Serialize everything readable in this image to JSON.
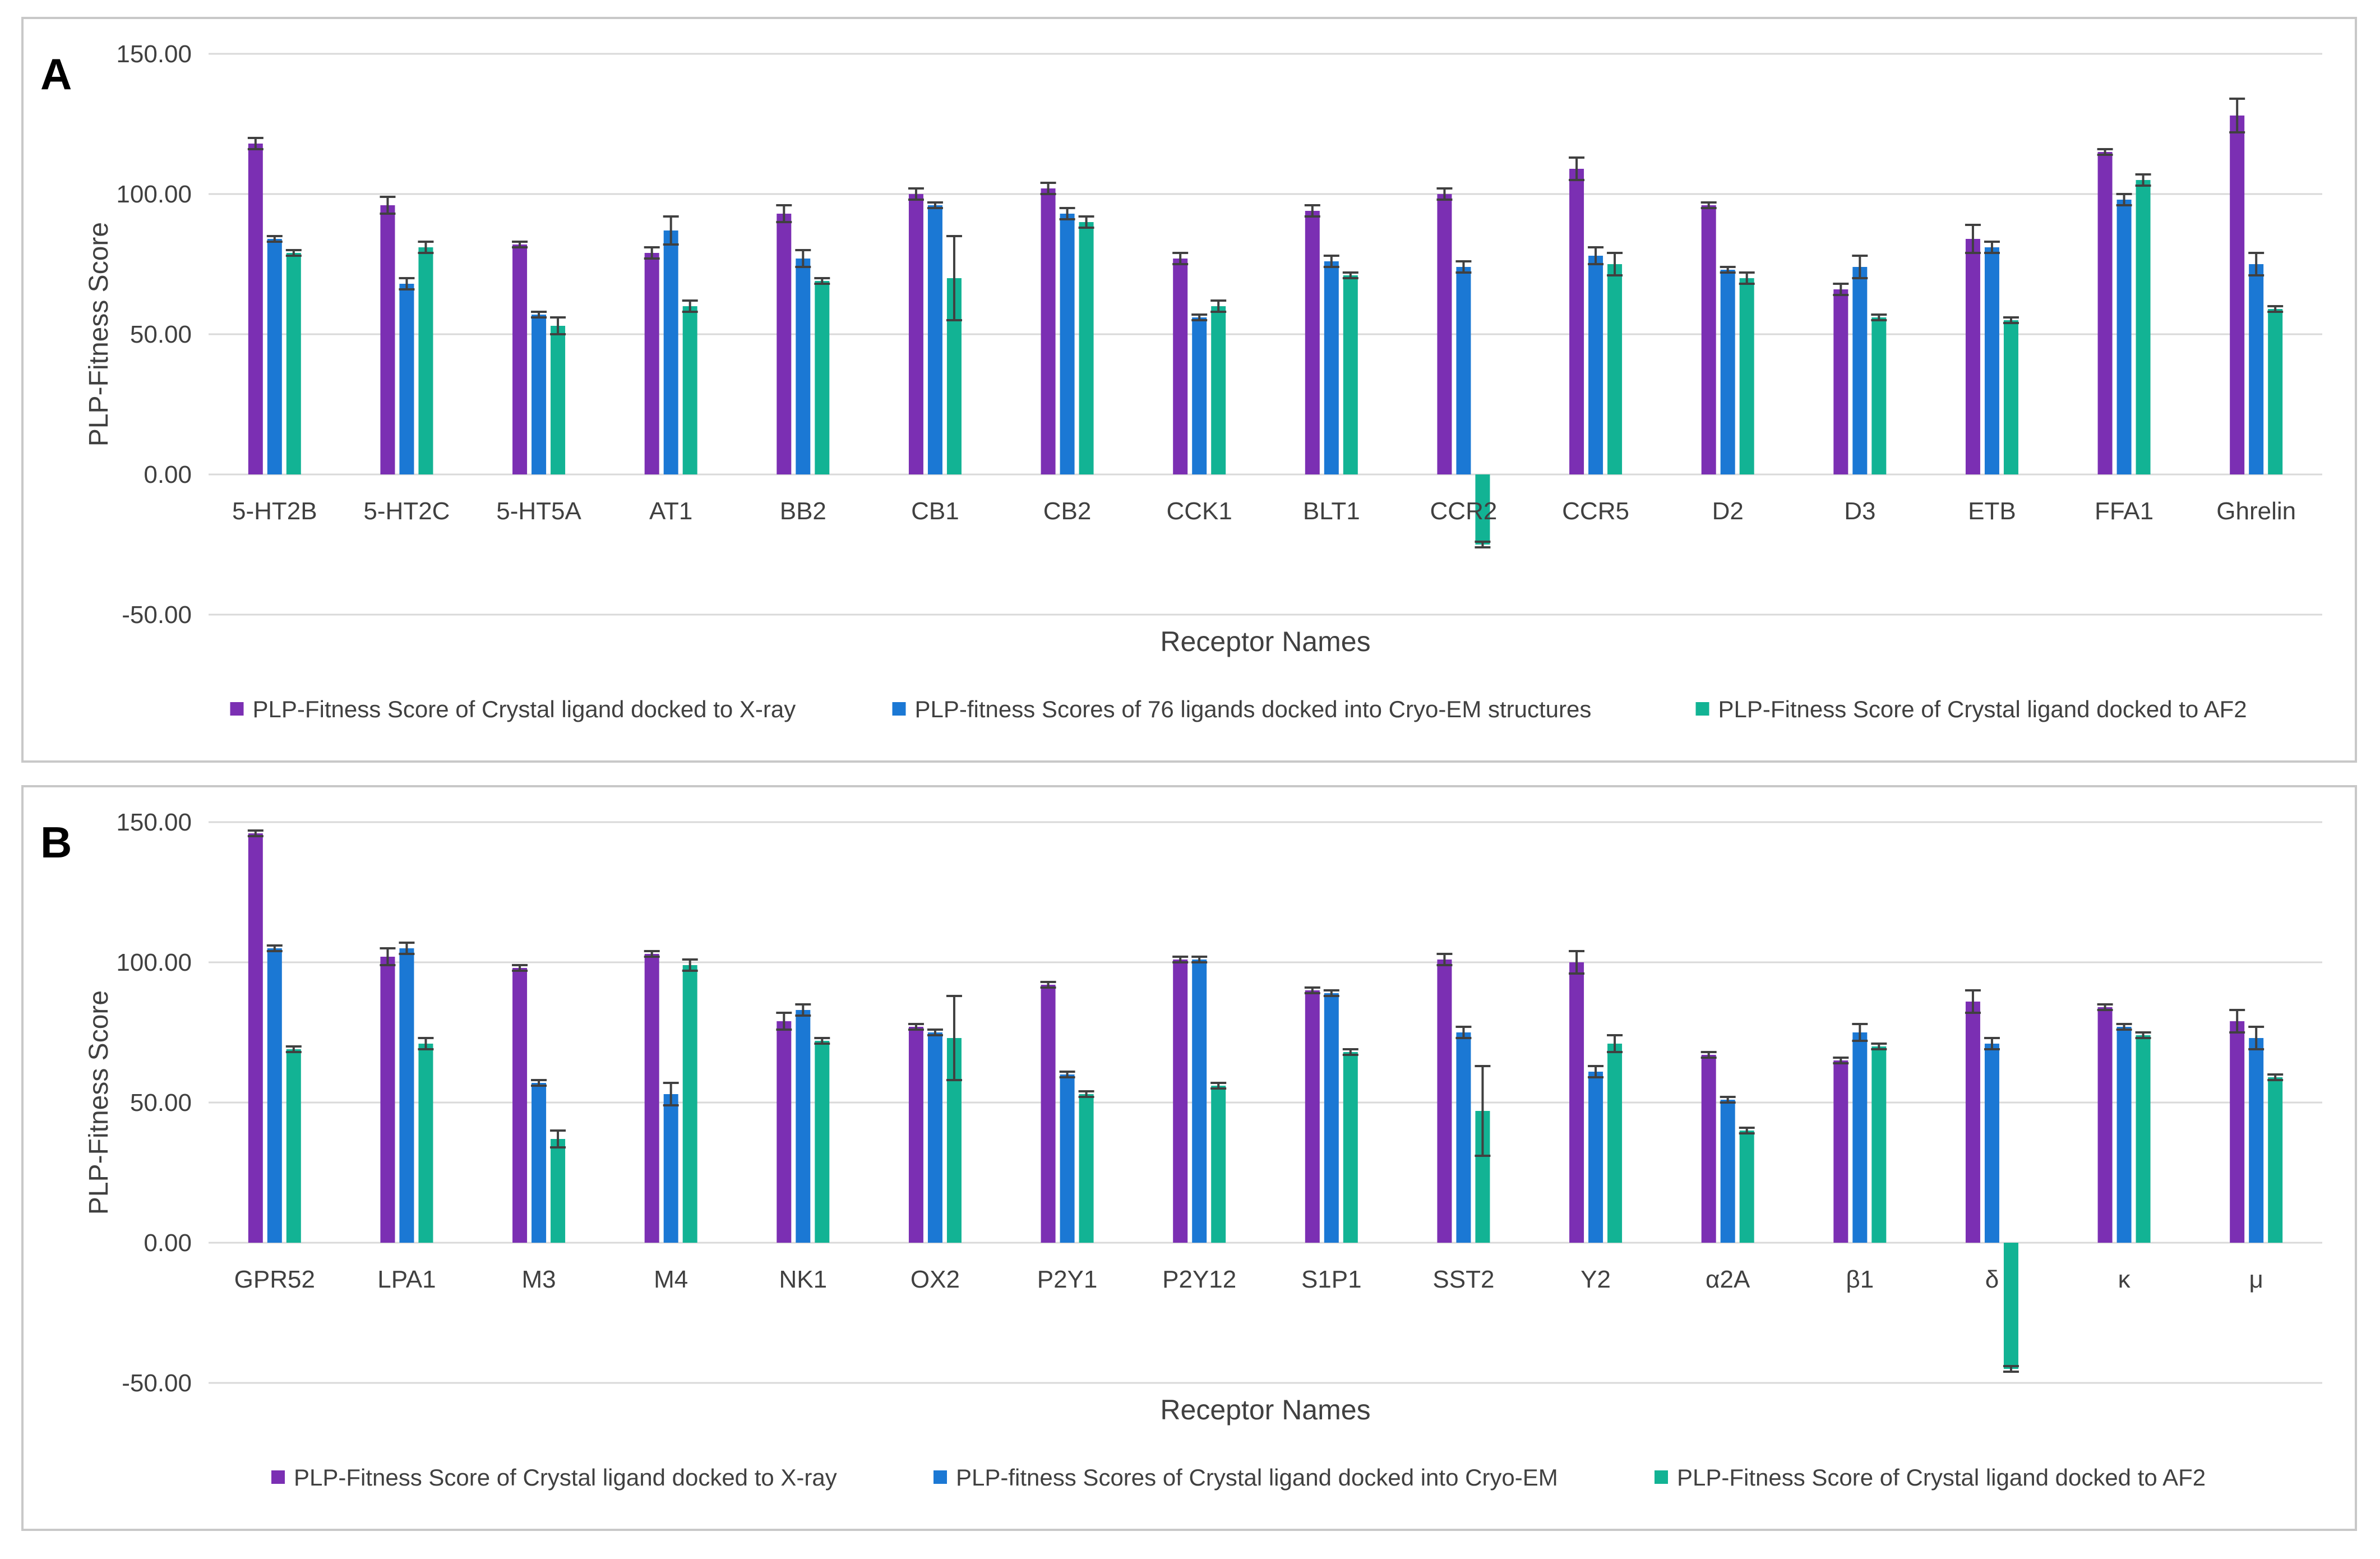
{
  "colors": {
    "xray": "#7B2FB3",
    "cryo": "#1B78D4",
    "af2": "#12B394",
    "grid": "#d9d9d9",
    "error": "#404040"
  },
  "chart_data": [
    {
      "type": "bar",
      "panel_label": "A",
      "title": "",
      "xlabel": "Receptor Names",
      "ylabel": "PLP-Fitness Score",
      "ylim": [
        -50,
        150
      ],
      "yticks": [
        "150.00",
        "100.00",
        "50.00",
        "0.00",
        "-50.00"
      ],
      "ytick_values": [
        150,
        100,
        50,
        0,
        -50
      ],
      "legend_position": "bottom",
      "categories": [
        "5-HT2B",
        "5-HT2C",
        "5-HT5A",
        "AT1",
        "BB2",
        "CB1",
        "CB2",
        "CCK1",
        "BLT1",
        "CCR2",
        "CCR5",
        "D2",
        "D3",
        "ETB",
        "FFA1",
        "Ghrelin"
      ],
      "series": [
        {
          "name": "PLP-Fitness Score of Crystal ligand docked to X-ray",
          "color_key": "xray",
          "values": [
            118,
            96,
            82,
            79,
            93,
            100,
            102,
            77,
            94,
            100,
            109,
            96,
            66,
            84,
            115,
            128
          ],
          "errors": [
            2,
            3,
            1,
            2,
            3,
            2,
            2,
            2,
            2,
            2,
            4,
            1,
            2,
            5,
            1,
            6
          ]
        },
        {
          "name": "PLP-fitness Scores of 76 ligands docked into Cryo-EM structures",
          "color_key": "cryo",
          "values": [
            84,
            68,
            57,
            87,
            77,
            96,
            93,
            56,
            76,
            74,
            78,
            73,
            74,
            81,
            98,
            75
          ],
          "errors": [
            1,
            2,
            1,
            5,
            3,
            1,
            2,
            1,
            2,
            2,
            3,
            1,
            4,
            2,
            2,
            4
          ]
        },
        {
          "name": "PLP-Fitness Score of Crystal ligand docked to AF2",
          "color_key": "af2",
          "values": [
            79,
            81,
            53,
            60,
            69,
            70,
            90,
            60,
            71,
            -25,
            75,
            70,
            56,
            55,
            105,
            59
          ],
          "errors": [
            1,
            2,
            3,
            2,
            1,
            15,
            2,
            2,
            1,
            1,
            4,
            2,
            1,
            1,
            2,
            1
          ]
        }
      ]
    },
    {
      "type": "bar",
      "panel_label": "B",
      "title": "",
      "xlabel": "Receptor Names",
      "ylabel": "PLP-Fitness Score",
      "ylim": [
        -50,
        150
      ],
      "yticks": [
        "150.00",
        "100.00",
        "50.00",
        "0.00",
        "-50.00"
      ],
      "ytick_values": [
        150,
        100,
        50,
        0,
        -50
      ],
      "legend_position": "bottom",
      "categories": [
        "GPR52",
        "LPA1",
        "M3",
        "M4",
        "NK1",
        "OX2",
        "P2Y1",
        "P2Y12",
        "S1P1",
        "SST2",
        "Y2",
        "α2A",
        "β1",
        "δ",
        "κ",
        "μ"
      ],
      "series": [
        {
          "name": "PLP-Fitness Score of Crystal ligand docked to X-ray",
          "color_key": "xray",
          "values": [
            146,
            102,
            98,
            103,
            79,
            77,
            92,
            101,
            90,
            101,
            100,
            67,
            65,
            86,
            84,
            79
          ],
          "errors": [
            1,
            3,
            1,
            1,
            3,
            1,
            1,
            1,
            1,
            2,
            4,
            1,
            1,
            4,
            1,
            4
          ]
        },
        {
          "name": "PLP-fitness Scores of Crystal ligand docked into Cryo-EM",
          "color_key": "cryo",
          "values": [
            105,
            105,
            57,
            53,
            83,
            75,
            60,
            101,
            89,
            75,
            61,
            51,
            75,
            71,
            77,
            73
          ],
          "errors": [
            1,
            2,
            1,
            4,
            2,
            1,
            1,
            1,
            1,
            2,
            2,
            1,
            3,
            2,
            1,
            4
          ]
        },
        {
          "name": "PLP-Fitness Score of Crystal ligand docked to AF2",
          "color_key": "af2",
          "values": [
            69,
            71,
            37,
            99,
            72,
            73,
            53,
            56,
            68,
            47,
            71,
            40,
            70,
            -45,
            74,
            59
          ],
          "errors": [
            1,
            2,
            3,
            2,
            1,
            15,
            1,
            1,
            1,
            16,
            3,
            1,
            1,
            1,
            1,
            1
          ]
        }
      ]
    }
  ]
}
